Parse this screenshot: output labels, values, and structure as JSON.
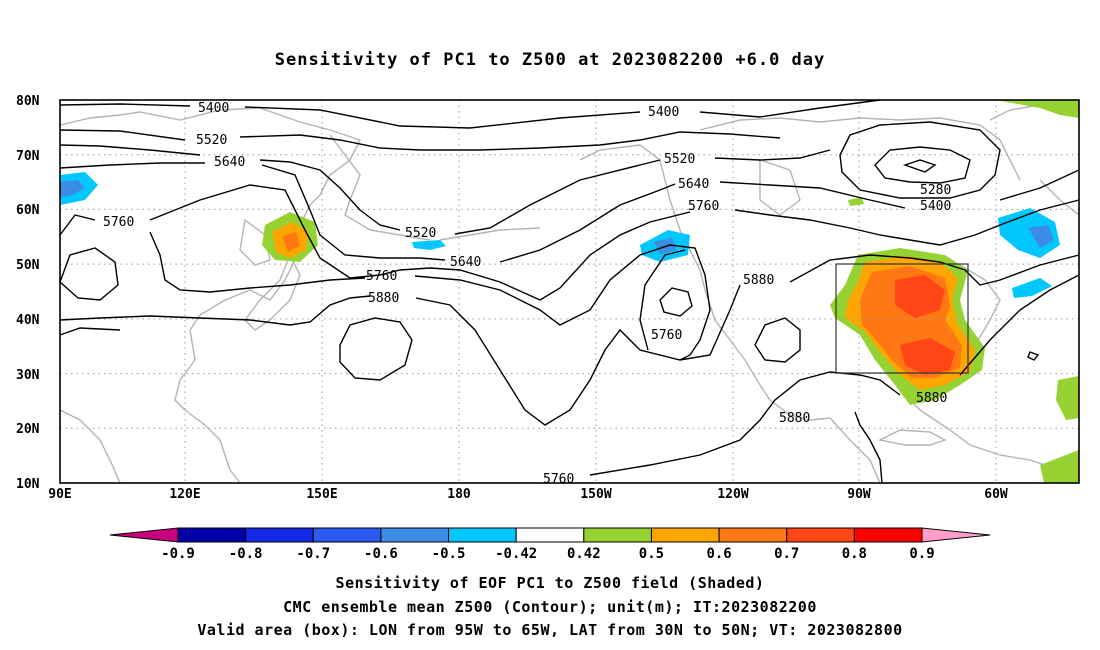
{
  "title": "Sensitivity of PC1 to Z500 at 2023082200 +6.0 day",
  "map": {
    "lat_ticks": [
      "80N",
      "70N",
      "60N",
      "50N",
      "40N",
      "30N",
      "20N",
      "10N"
    ],
    "lon_ticks": [
      "90E",
      "120E",
      "150E",
      "180",
      "150W",
      "120W",
      "90W",
      "60W"
    ],
    "contour_labels": [
      "5400",
      "5520",
      "5640",
      "5760",
      "5400",
      "5520",
      "5640",
      "5760",
      "5280",
      "5400",
      "5520",
      "5640",
      "5760",
      "5880",
      "5760",
      "5880",
      "5880",
      "5880"
    ],
    "box": {
      "lon_from": "95W",
      "lon_to": "65W",
      "lat_from": "30N",
      "lat_to": "50N"
    }
  },
  "colorbar": {
    "labels": [
      "-0.9",
      "-0.8",
      "-0.7",
      "-0.6",
      "-0.5",
      "-0.42",
      "0.42",
      "0.5",
      "0.6",
      "0.7",
      "0.8",
      "0.9"
    ],
    "colors": [
      "#0000a8",
      "#1428e6",
      "#2a5af0",
      "#3c8ce6",
      "#00c8ff",
      "#ffffff",
      "#96d232",
      "#ffa500",
      "#ff7814",
      "#ff4614",
      "#ff0000"
    ],
    "low_end_color": "#c8007d",
    "high_end_color": "#ff9ec8"
  },
  "captions": {
    "line1": "Sensitivity of EOF PC1 to Z500 field (Shaded)",
    "line2": "CMC ensemble mean Z500 (Contour); unit(m); IT:2023082200",
    "line3": "Valid area (box): LON from 95W to 65W, LAT from 30N to 50N; VT: 2023082800"
  }
}
